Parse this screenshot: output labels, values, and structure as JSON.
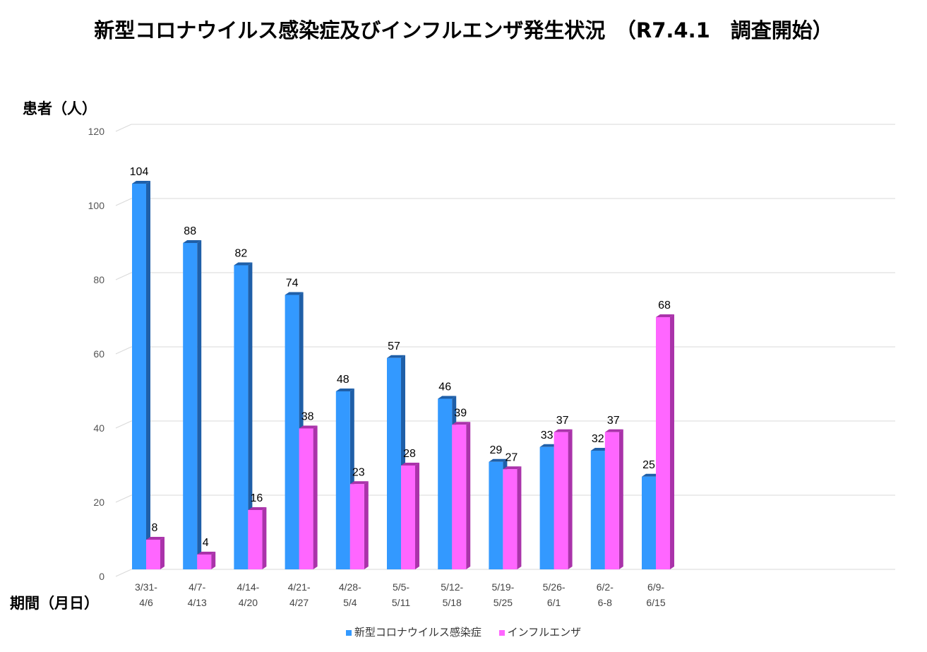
{
  "chart_data": {
    "type": "bar",
    "title": "新型コロナウイルス感染症及びインフルエンザ発生状況　（R7.4.1　調査開始）",
    "ylabel": "患者（人）",
    "xlabel": "期間（月日）",
    "ylim": [
      0,
      120
    ],
    "yticks": [
      0,
      20,
      40,
      60,
      80,
      100,
      120
    ],
    "grid": true,
    "legend_position": "bottom",
    "categories": [
      [
        "3/31-",
        "4/6"
      ],
      [
        "4/7-",
        "4/13"
      ],
      [
        "4/14-",
        "4/20"
      ],
      [
        "4/21-",
        "4/27"
      ],
      [
        "4/28-",
        "5/4"
      ],
      [
        "5/5-",
        "5/11"
      ],
      [
        "5/12-",
        "5/18"
      ],
      [
        "5/19-",
        "5/25"
      ],
      [
        "5/26-",
        "6/1"
      ],
      [
        "6/2-",
        "6-8"
      ],
      [
        "6/9-",
        "6/15"
      ]
    ],
    "series": [
      {
        "name": "新型コロナウイルス感染症",
        "color": "#3399FF",
        "side_color": "#1F5FA8",
        "values": [
          104,
          88,
          82,
          74,
          48,
          57,
          46,
          29,
          33,
          32,
          25
        ]
      },
      {
        "name": "インフルエンザ",
        "color": "#FF66FF",
        "side_color": "#AA33AA",
        "values": [
          8,
          4,
          16,
          38,
          23,
          28,
          39,
          27,
          37,
          37,
          68
        ]
      }
    ]
  }
}
